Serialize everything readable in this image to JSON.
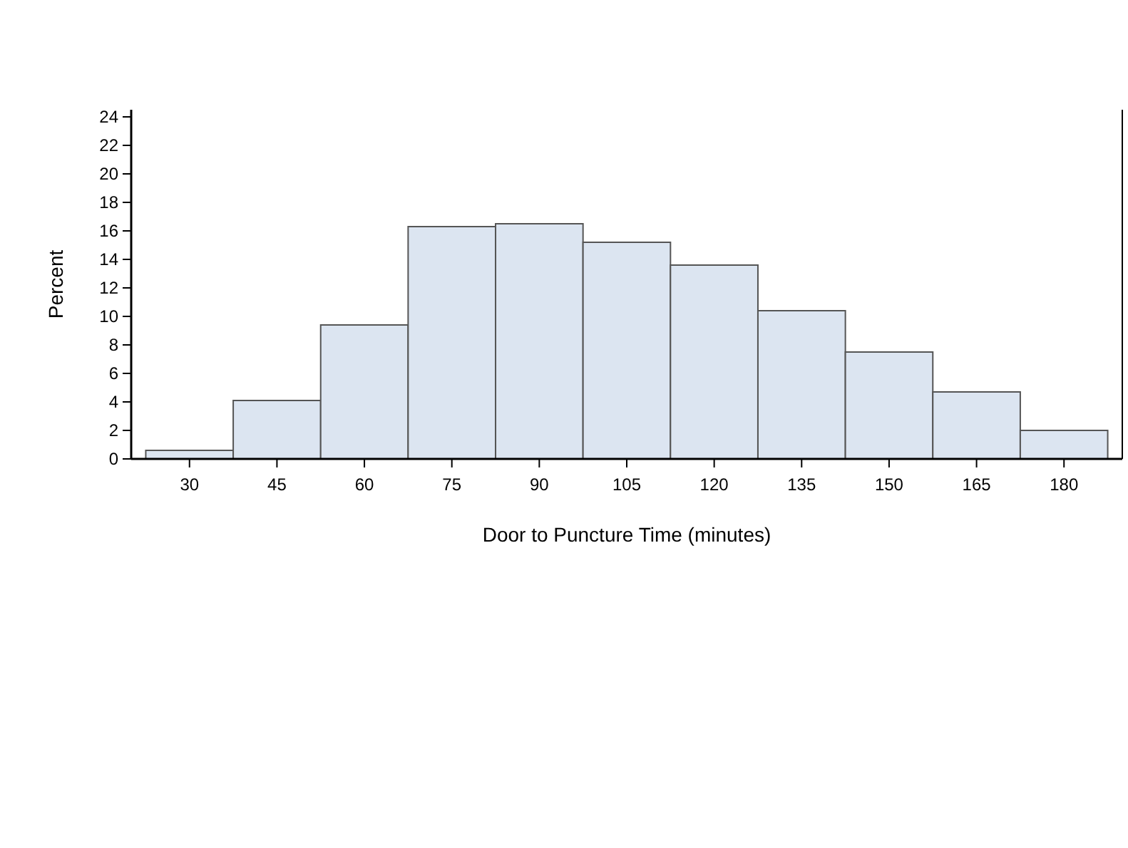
{
  "chart_data": {
    "type": "histogram",
    "xlabel": "Door to Puncture Time (minutes)",
    "ylabel": "Percent",
    "bins": [
      22.5,
      37.5,
      52.5,
      67.5,
      82.5,
      97.5,
      112.5,
      127.5,
      142.5,
      157.5,
      172.5,
      187.5
    ],
    "values": [
      0.6,
      4.1,
      9.4,
      16.3,
      16.5,
      15.2,
      13.6,
      10.4,
      7.5,
      4.7,
      2.0
    ],
    "color": "#dce5f1",
    "xlim": [
      20,
      190
    ],
    "xticks": [
      30,
      45,
      60,
      75,
      90,
      105,
      120,
      135,
      150,
      165,
      180
    ],
    "ylim": [
      0,
      24.5
    ],
    "yticks": [
      0,
      2,
      4,
      6,
      8,
      10,
      12,
      14,
      16,
      18,
      20,
      22,
      24
    ],
    "grid": false
  }
}
